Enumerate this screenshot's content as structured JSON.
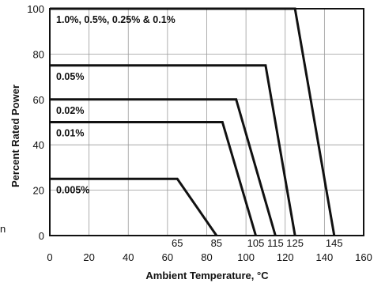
{
  "chart_data": {
    "type": "line",
    "title": "",
    "xlabel": "Ambient Temperature, °C",
    "ylabel": "Percent Rated Power",
    "xlim": [
      0,
      160
    ],
    "ylim": [
      0,
      100
    ],
    "x_ticks": [
      0,
      20,
      40,
      60,
      80,
      100,
      120,
      140,
      160
    ],
    "y_ticks": [
      0,
      20,
      40,
      60,
      80,
      100
    ],
    "top_ticks": [
      65,
      85,
      105,
      115,
      125,
      145
    ],
    "grid": true,
    "legend": "none",
    "series": [
      {
        "name": "1.0%, 0.5%, 0.25% & 0.1%",
        "x": [
          0,
          125,
          145
        ],
        "y": [
          100,
          100,
          0
        ]
      },
      {
        "name": "0.05%",
        "x": [
          0,
          110,
          125
        ],
        "y": [
          75,
          75,
          0
        ]
      },
      {
        "name": "0.02%",
        "x": [
          0,
          95,
          115
        ],
        "y": [
          60,
          60,
          0
        ]
      },
      {
        "name": "0.01%",
        "x": [
          0,
          88,
          105
        ],
        "y": [
          50,
          50,
          0
        ]
      },
      {
        "name": "0.005%",
        "x": [
          0,
          65,
          85
        ],
        "y": [
          25,
          25,
          0
        ]
      }
    ],
    "line_color": "#111111",
    "grid_color": "#9a9a9a"
  },
  "left_fragment": "n"
}
